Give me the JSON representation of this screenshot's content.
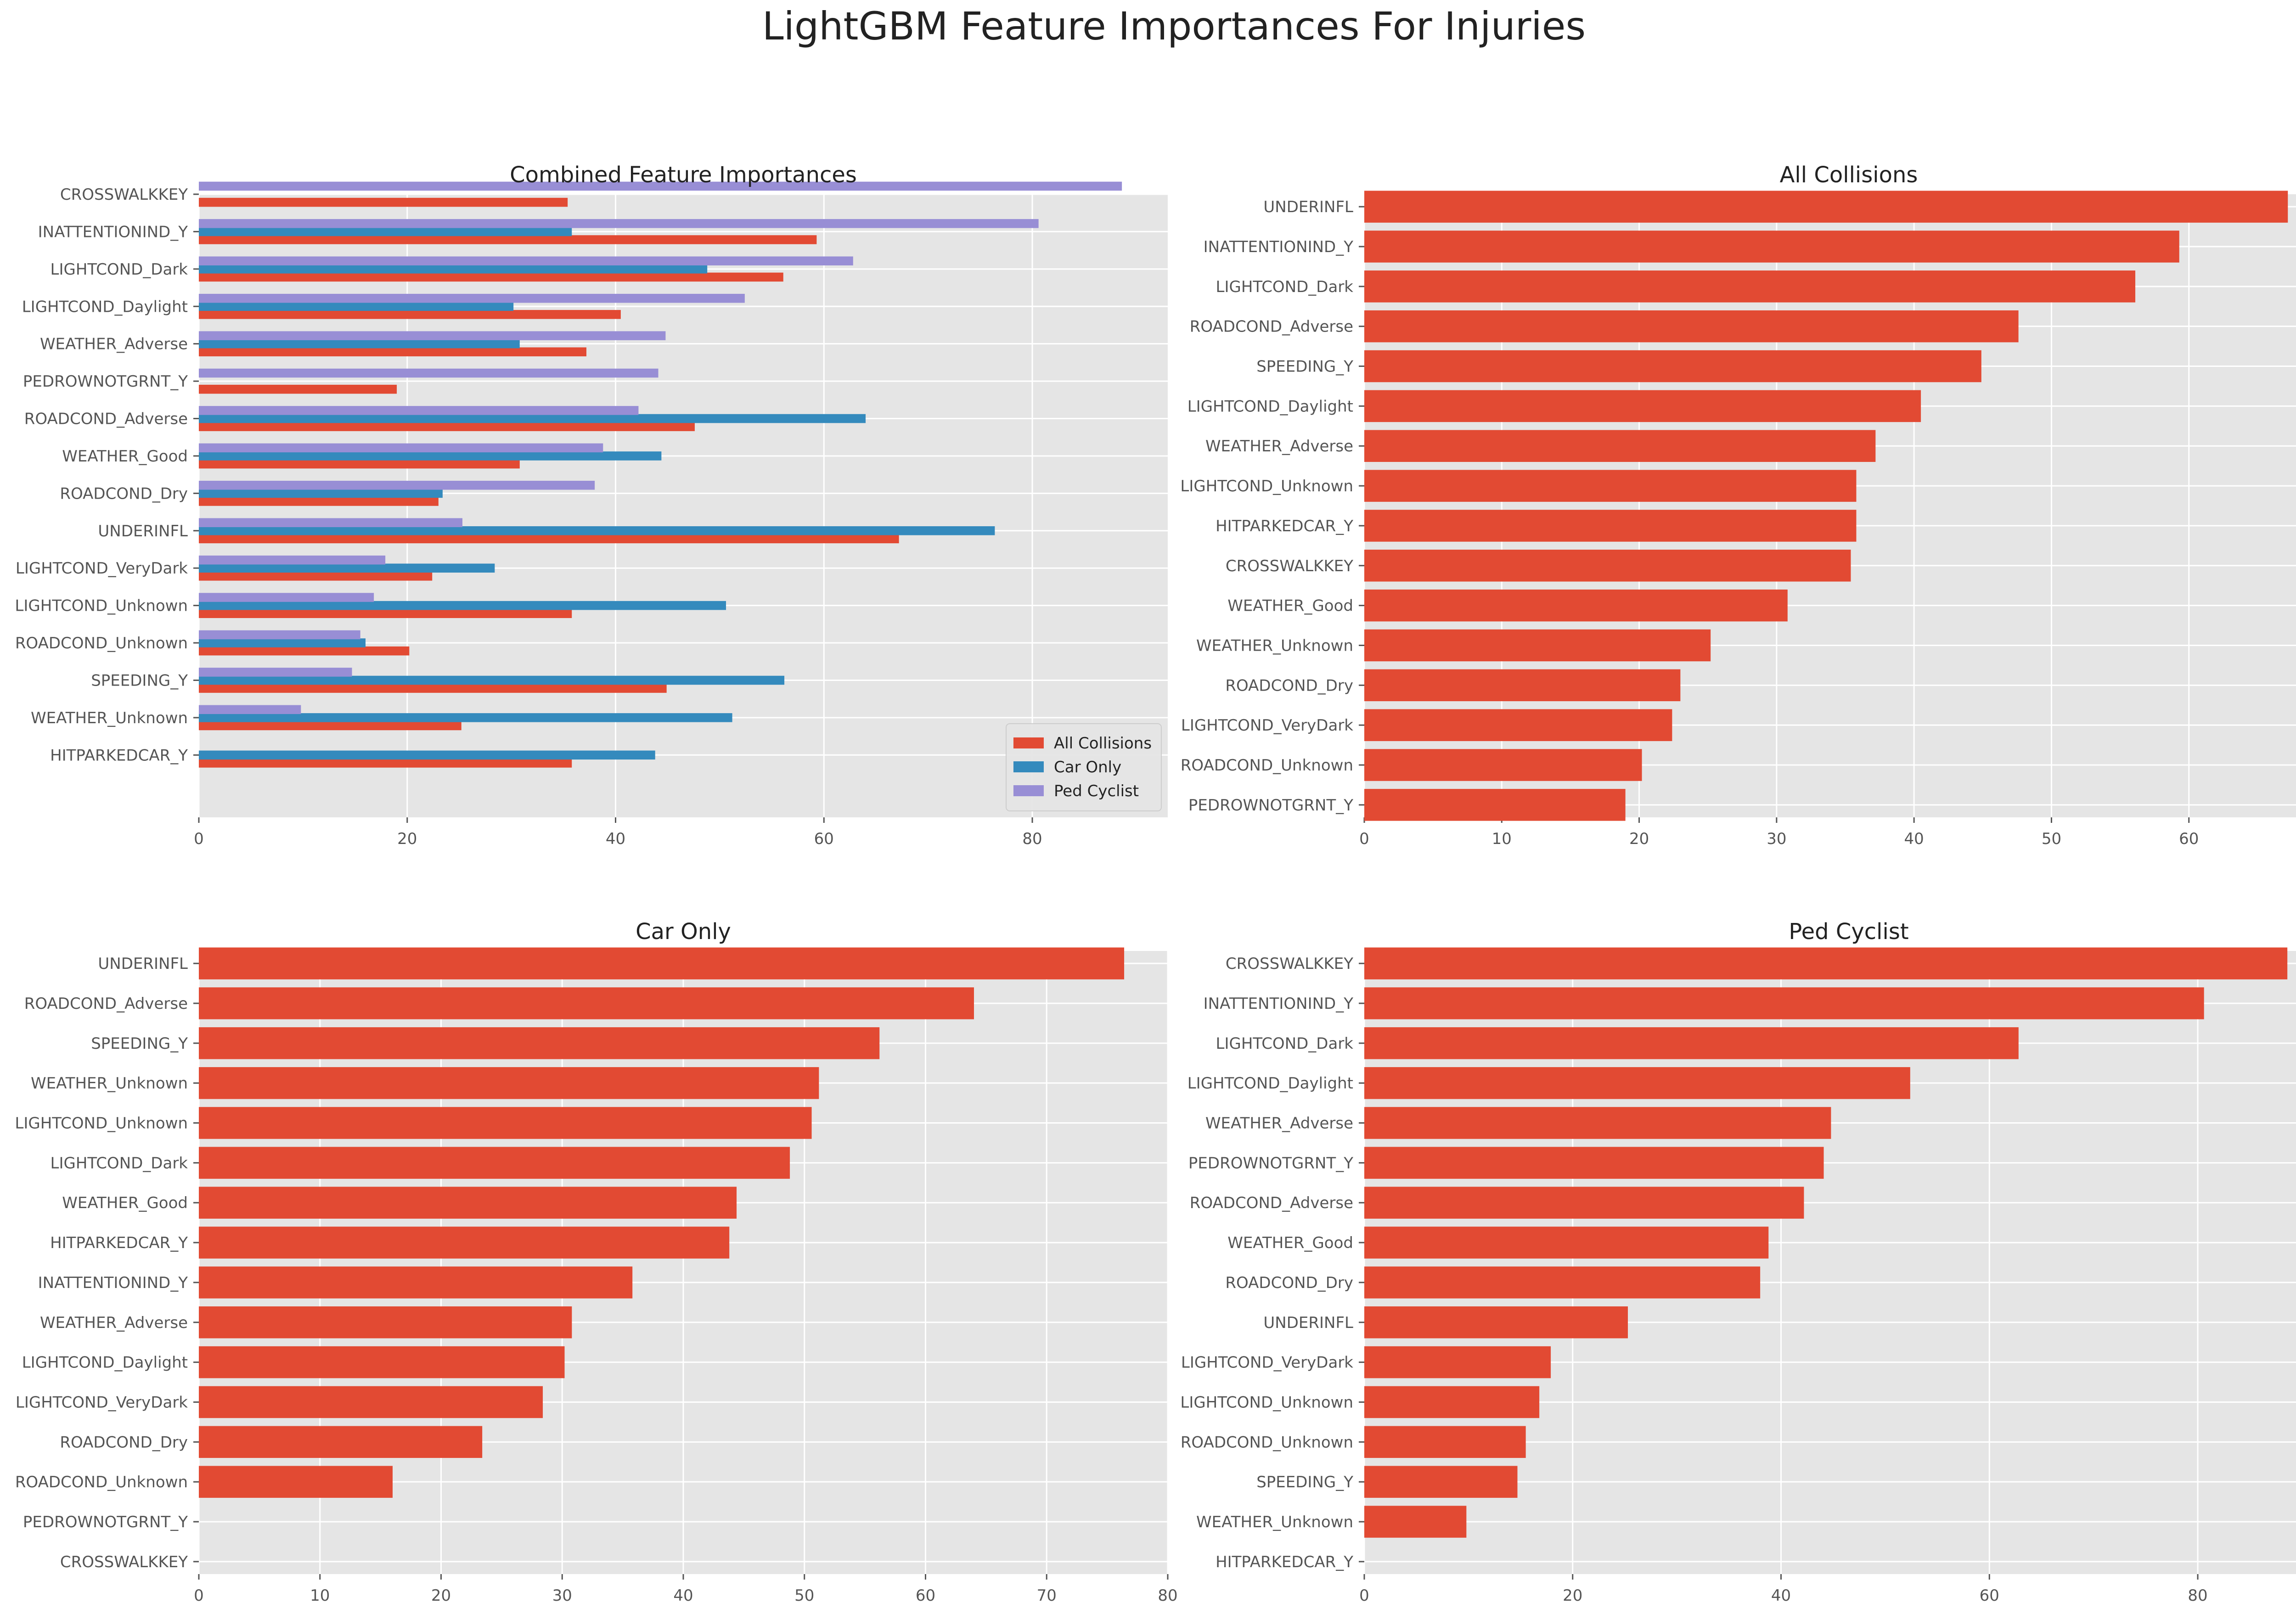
{
  "figure": {
    "title": "LightGBM Feature Importances For Injuries"
  },
  "style": {
    "plot_bg": "#E5E5E5",
    "grid": "#FFFFFF",
    "text": "#555555",
    "title_text": "#222222",
    "series_colors": [
      "#E24A33",
      "#348ABD",
      "#988ED5"
    ]
  },
  "chart_data": [
    {
      "type": "bar",
      "orientation": "horizontal",
      "title": "Combined Feature Importances",
      "xlabel": "",
      "ylabel": "",
      "xlim": [
        0,
        93
      ],
      "xticks": [
        0,
        20,
        40,
        60,
        80
      ],
      "grid": true,
      "legend": "bottom-right",
      "categories": [
        "CROSSWALKKEY",
        "INATTENTIONIND_Y",
        "LIGHTCOND_Dark",
        "LIGHTCOND_Daylight",
        "WEATHER_Adverse",
        "PEDROWNOTGRNT_Y",
        "ROADCOND_Adverse",
        "WEATHER_Good",
        "ROADCOND_Dry",
        "UNDERINFL",
        "LIGHTCOND_VeryDark",
        "LIGHTCOND_Unknown",
        "ROADCOND_Unknown",
        "SPEEDING_Y",
        "WEATHER_Unknown",
        "HITPARKEDCAR_Y"
      ],
      "series": [
        {
          "name": "All Collisions",
          "values": [
            35.4,
            59.3,
            56.1,
            40.5,
            37.2,
            19.0,
            47.6,
            30.8,
            23.0,
            67.2,
            22.4,
            35.8,
            20.2,
            44.9,
            25.2,
            35.8
          ]
        },
        {
          "name": "Car Only",
          "values": [
            0,
            35.8,
            48.8,
            30.2,
            30.8,
            0,
            64.0,
            44.4,
            23.4,
            76.4,
            28.4,
            50.6,
            16.0,
            56.2,
            51.2,
            43.8
          ]
        },
        {
          "name": "Ped Cyclist",
          "values": [
            88.6,
            80.6,
            62.8,
            52.4,
            44.8,
            44.1,
            42.2,
            38.8,
            38.0,
            25.3,
            17.9,
            16.8,
            15.5,
            14.7,
            9.8,
            0
          ]
        }
      ]
    },
    {
      "type": "bar",
      "orientation": "horizontal",
      "title": "All Collisions",
      "xlabel": "",
      "ylabel": "",
      "xlim": [
        0,
        70.5
      ],
      "xticks": [
        0,
        10,
        20,
        30,
        40,
        50,
        60,
        70
      ],
      "grid": true,
      "categories": [
        "UNDERINFL",
        "INATTENTIONIND_Y",
        "LIGHTCOND_Dark",
        "ROADCOND_Adverse",
        "SPEEDING_Y",
        "LIGHTCOND_Daylight",
        "WEATHER_Adverse",
        "LIGHTCOND_Unknown",
        "HITPARKEDCAR_Y",
        "CROSSWALKKEY",
        "WEATHER_Good",
        "WEATHER_Unknown",
        "ROADCOND_Dry",
        "LIGHTCOND_VeryDark",
        "ROADCOND_Unknown",
        "PEDROWNOTGRNT_Y"
      ],
      "values": [
        67.2,
        59.3,
        56.1,
        47.6,
        44.9,
        40.5,
        37.2,
        35.8,
        35.8,
        35.4,
        30.8,
        25.2,
        23.0,
        22.4,
        20.2,
        19.0
      ]
    },
    {
      "type": "bar",
      "orientation": "horizontal",
      "title": "Car Only",
      "xlabel": "",
      "ylabel": "",
      "xlim": [
        0,
        80
      ],
      "xticks": [
        0,
        10,
        20,
        30,
        40,
        50,
        60,
        70,
        80
      ],
      "grid": true,
      "categories": [
        "UNDERINFL",
        "ROADCOND_Adverse",
        "SPEEDING_Y",
        "WEATHER_Unknown",
        "LIGHTCOND_Unknown",
        "LIGHTCOND_Dark",
        "WEATHER_Good",
        "HITPARKEDCAR_Y",
        "INATTENTIONIND_Y",
        "WEATHER_Adverse",
        "LIGHTCOND_Daylight",
        "LIGHTCOND_VeryDark",
        "ROADCOND_Dry",
        "ROADCOND_Unknown",
        "PEDROWNOTGRNT_Y",
        "CROSSWALKKEY"
      ],
      "values": [
        76.4,
        64.0,
        56.2,
        51.2,
        50.6,
        48.8,
        44.4,
        43.8,
        35.8,
        30.8,
        30.2,
        28.4,
        23.4,
        16.0,
        0,
        0
      ]
    },
    {
      "type": "bar",
      "orientation": "horizontal",
      "title": "Ped Cyclist",
      "xlabel": "",
      "ylabel": "",
      "xlim": [
        0,
        93
      ],
      "xticks": [
        0,
        20,
        40,
        60,
        80
      ],
      "grid": true,
      "categories": [
        "CROSSWALKKEY",
        "INATTENTIONIND_Y",
        "LIGHTCOND_Dark",
        "LIGHTCOND_Daylight",
        "WEATHER_Adverse",
        "PEDROWNOTGRNT_Y",
        "ROADCOND_Adverse",
        "WEATHER_Good",
        "ROADCOND_Dry",
        "UNDERINFL",
        "LIGHTCOND_VeryDark",
        "LIGHTCOND_Unknown",
        "ROADCOND_Unknown",
        "SPEEDING_Y",
        "WEATHER_Unknown",
        "HITPARKEDCAR_Y"
      ],
      "values": [
        88.6,
        80.6,
        62.8,
        52.4,
        44.8,
        44.1,
        42.2,
        38.8,
        38.0,
        25.3,
        17.9,
        16.8,
        15.5,
        14.7,
        9.8,
        0
      ]
    }
  ]
}
